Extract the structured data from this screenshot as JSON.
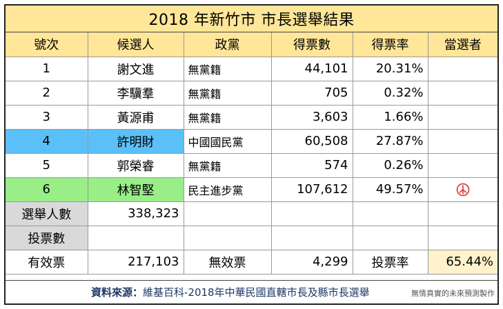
{
  "title": "2018 年新竹市 市長選舉結果",
  "headers": [
    "號次",
    "候選人",
    "政黨",
    "得票數",
    "得票率",
    "當選者"
  ],
  "candidates": [
    {
      "no": "1",
      "name": "謝文進",
      "party": "無黨籍",
      "votes": "44,101",
      "rate": "20.31%"
    },
    {
      "no": "2",
      "name": "李驥羣",
      "party": "無黨籍",
      "votes": "705",
      "rate": "0.32%"
    },
    {
      "no": "3",
      "name": "黃源甫",
      "party": "無黨籍",
      "votes": "3,603",
      "rate": "1.66%"
    },
    {
      "no": "4",
      "name": "許明財",
      "party": "中國國民黨",
      "votes": "60,508",
      "rate": "27.87%"
    },
    {
      "no": "5",
      "name": "郭榮睿",
      "party": "無黨籍",
      "votes": "574",
      "rate": "0.26%"
    },
    {
      "no": "6",
      "name": "林智堅",
      "party": "民主進步黨",
      "votes": "107,612",
      "rate": "49.57%"
    }
  ],
  "winner_icon": "elected-stamp-icon",
  "colors": {
    "kmt": "#5bc0f8",
    "dpp": "#99ee88",
    "header": "#ffe699",
    "stamp": "#e03030"
  },
  "summary": {
    "electorate_label": "選舉人數",
    "electorate_value": "338,323",
    "ballots_label": "投票數",
    "ballots_value": "",
    "valid_label": "有效票",
    "valid_value": "217,103",
    "invalid_label": "無效票",
    "invalid_value": "4,299",
    "turnout_label": "投票率",
    "turnout_value": "65.44%"
  },
  "footer": {
    "source_label": "資料來源：",
    "source_text": "維基百科-2018年中華民國直轄市長及縣市長選舉",
    "note": "無情真實的未來預測製作"
  }
}
